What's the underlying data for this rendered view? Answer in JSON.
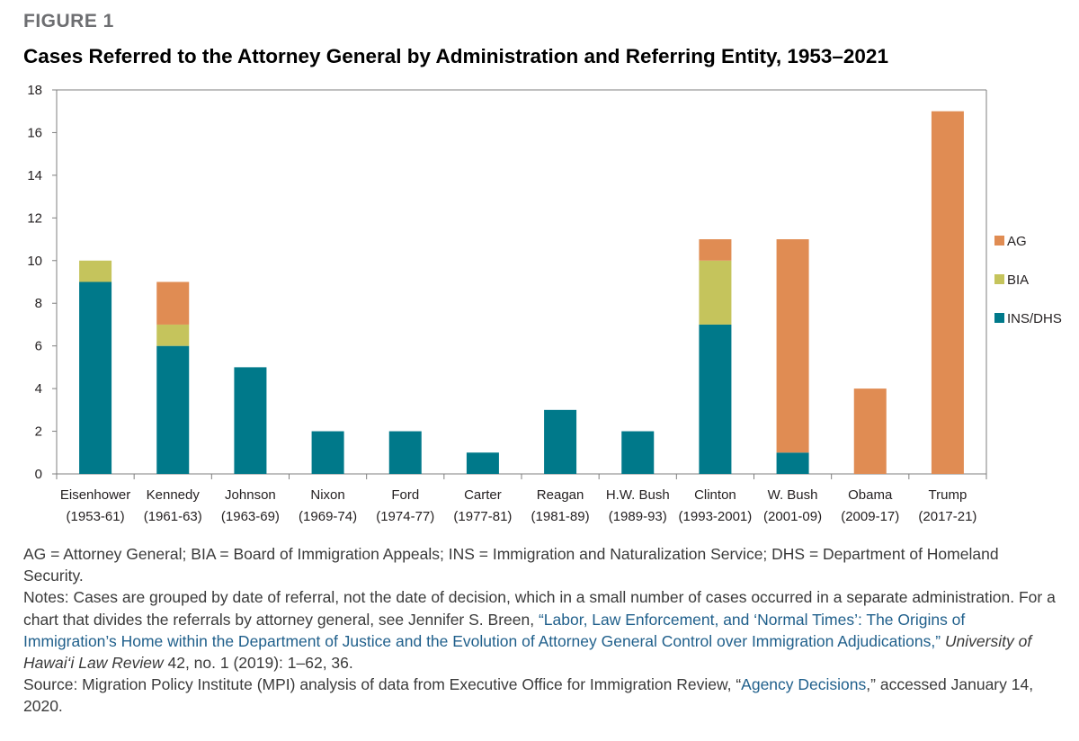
{
  "figure_label": "FIGURE 1",
  "colors": {
    "AG": "#e08c53",
    "BIA": "#c5c45c",
    "INS/DHS": "#00798a",
    "axis": "#7f7f7f",
    "link": "#1f5f8b"
  },
  "chart_data": {
    "type": "bar",
    "stacked": true,
    "title": "Cases Referred to the Attorney General by Administration and Referring Entity, 1953–2021",
    "xlabel": "",
    "ylabel": "",
    "ylim": [
      0,
      18
    ],
    "yticks": [
      0,
      2,
      4,
      6,
      8,
      10,
      12,
      14,
      16,
      18
    ],
    "grid": false,
    "legend_position": "right",
    "categories": [
      {
        "name": "Eisenhower",
        "years": "(1953-61)"
      },
      {
        "name": "Kennedy",
        "years": "(1961-63)"
      },
      {
        "name": "Johnson",
        "years": "(1963-69)"
      },
      {
        "name": "Nixon",
        "years": "(1969-74)"
      },
      {
        "name": "Ford",
        "years": "(1974-77)"
      },
      {
        "name": "Carter",
        "years": "(1977-81)"
      },
      {
        "name": "Reagan",
        "years": "(1981-89)"
      },
      {
        "name": "H.W. Bush",
        "years": "(1989-93)"
      },
      {
        "name": "Clinton",
        "years": "(1993-2001)"
      },
      {
        "name": "W. Bush",
        "years": "(2001-09)"
      },
      {
        "name": "Obama",
        "years": "(2009-17)"
      },
      {
        "name": "Trump",
        "years": "(2017-21)"
      }
    ],
    "series": [
      {
        "name": "INS/DHS",
        "values": [
          9,
          6,
          5,
          2,
          2,
          1,
          3,
          2,
          7,
          1,
          0,
          0
        ]
      },
      {
        "name": "BIA",
        "values": [
          1,
          1,
          0,
          0,
          0,
          0,
          0,
          0,
          3,
          0,
          0,
          0
        ]
      },
      {
        "name": "AG",
        "values": [
          0,
          2,
          0,
          0,
          0,
          0,
          0,
          0,
          1,
          10,
          4,
          17
        ]
      }
    ],
    "legend_order": [
      "AG",
      "BIA",
      "INS/DHS"
    ]
  },
  "notes": {
    "abbreviations": "AG = Attorney General; BIA = Board of Immigration Appeals; INS = Immigration and Naturalization Service; DHS = Department of Homeland Security.",
    "notes_intro": "Notes: Cases are grouped by date of referral, not the date of decision, which in a small number of cases occurred in a separate administration. For a chart that divides the referrals by attorney general, see Jennifer S. Breen, ",
    "notes_link": "“Labor, Law Enforcement, and ‘Normal Times’: The Origins of Immigration’s Home within the Department of Justice and the Evolution of Attorney General Control over Immigration Adjudications,”",
    "notes_journal": " University of Hawai‘i Law Review",
    "notes_tail": " 42, no. 1 (2019): 1–62, 36.",
    "source_intro": "Source: Migration Policy Institute (MPI) analysis of data from Executive Office for Immigration Review, “",
    "source_link": "Agency Decisions",
    "source_tail": ",” accessed January 14, 2020."
  }
}
